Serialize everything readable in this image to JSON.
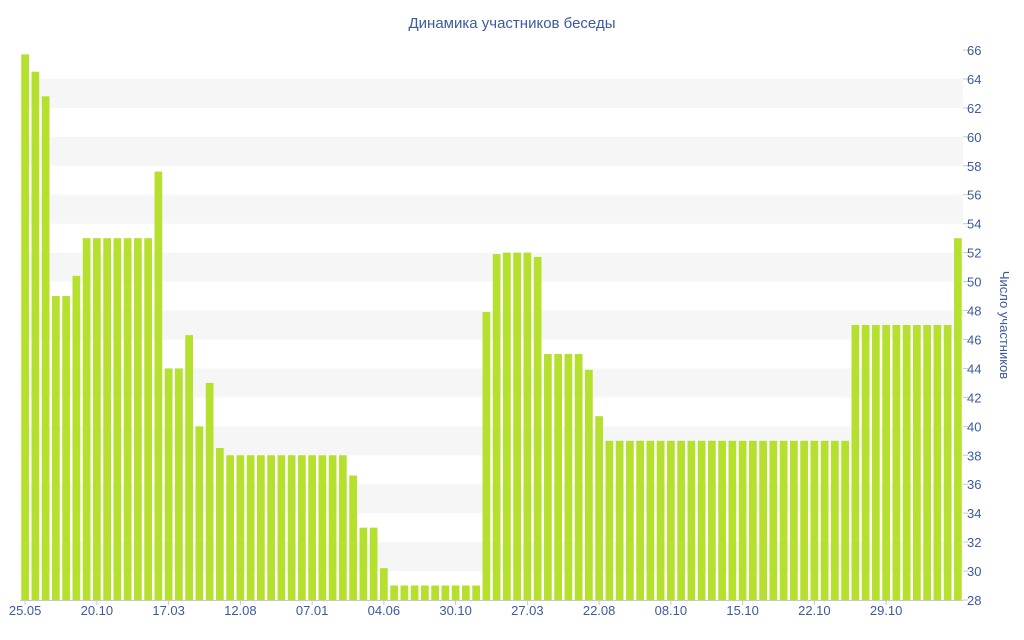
{
  "chart_data": {
    "type": "bar",
    "title": "Динамика участников беседы",
    "ylabel": "Число участников",
    "ylim": [
      28,
      66
    ],
    "ytick_step": 2,
    "y_axis_position": "right",
    "grid": "alternating horizontal bands",
    "bar_color": "#b5e02e",
    "band_color": "#f6f6f6",
    "x_tick_labels": [
      {
        "label": "25.05",
        "index": 0
      },
      {
        "label": "20.10",
        "index": 7
      },
      {
        "label": "17.03",
        "index": 14
      },
      {
        "label": "12.08",
        "index": 21
      },
      {
        "label": "07.01",
        "index": 28
      },
      {
        "label": "04.06",
        "index": 35
      },
      {
        "label": "30.10",
        "index": 42
      },
      {
        "label": "27.03",
        "index": 49
      },
      {
        "label": "22.08",
        "index": 56
      },
      {
        "label": "08.10",
        "index": 63
      },
      {
        "label": "15.10",
        "index": 70
      },
      {
        "label": "22.10",
        "index": 77
      },
      {
        "label": "29.10",
        "index": 84
      }
    ],
    "values": [
      65.7,
      64.5,
      62.8,
      49,
      49,
      50.4,
      53,
      53,
      53,
      53,
      53,
      53,
      53,
      57.6,
      44,
      44,
      46.3,
      40,
      43,
      38.5,
      38,
      38,
      38,
      38,
      38,
      38,
      38,
      38,
      38,
      38,
      38,
      38,
      36.6,
      33,
      33,
      30.2,
      29,
      29,
      29,
      29,
      29,
      29,
      29,
      29,
      29,
      47.9,
      51.9,
      52,
      52,
      52,
      51.7,
      45,
      45,
      45,
      45,
      43.9,
      40.7,
      39,
      39,
      39,
      39,
      39,
      39,
      39,
      39,
      39,
      39,
      39,
      39,
      39,
      39,
      39,
      39,
      39,
      39,
      39,
      39,
      39,
      39,
      39,
      39,
      47,
      47,
      47,
      47,
      47,
      47,
      47,
      47,
      47,
      47,
      53
    ]
  }
}
